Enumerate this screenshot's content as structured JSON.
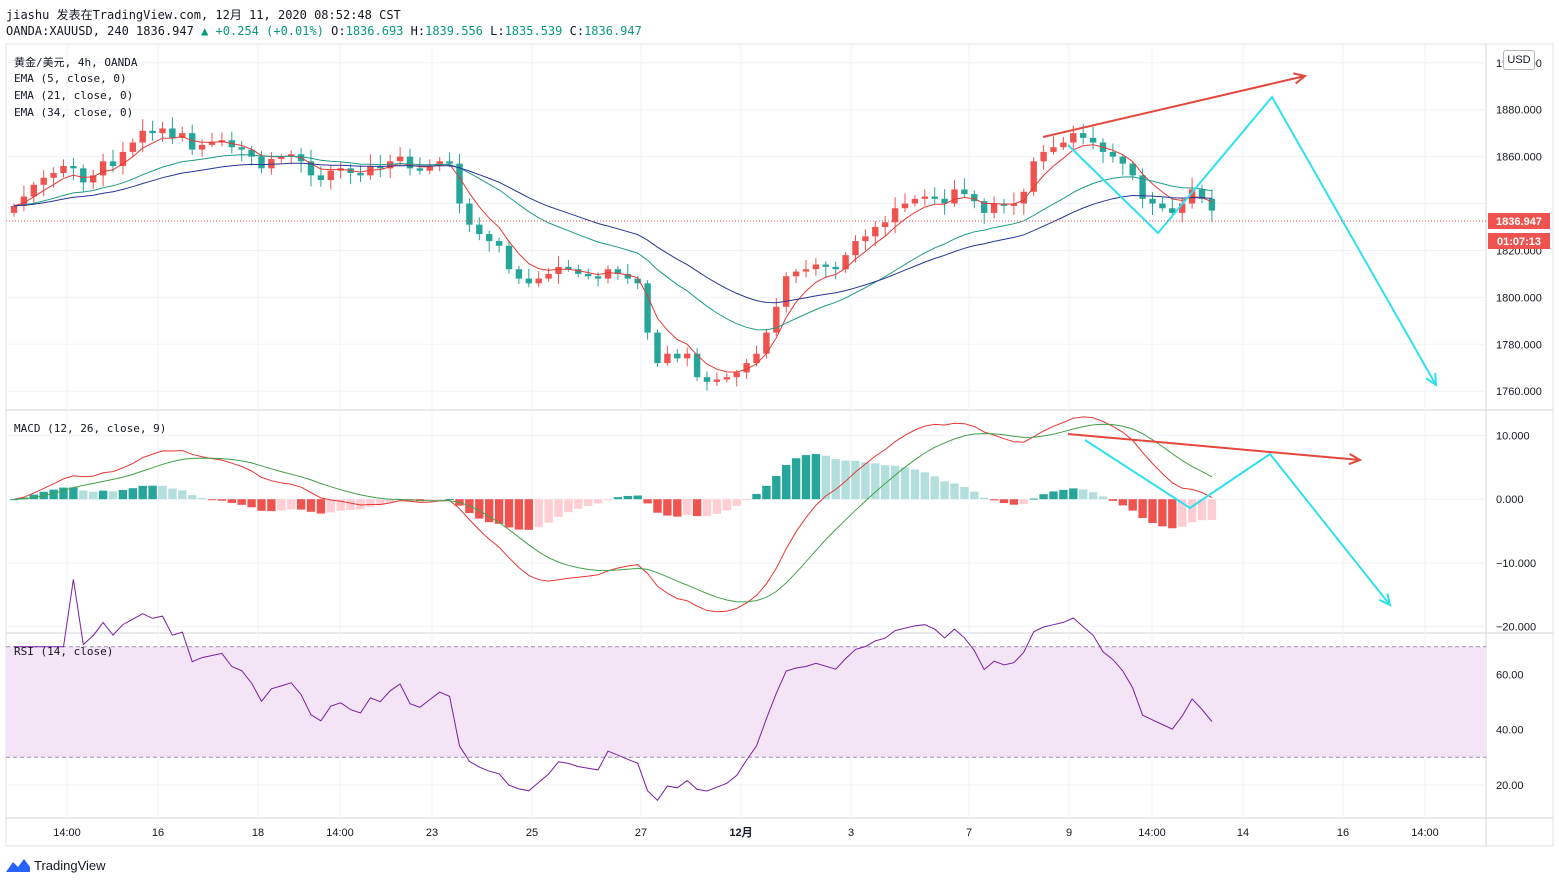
{
  "header": {
    "line1": "jiashu 发表在TradingView.com, 12月 11, 2020 08:52:48 CST",
    "symbol": "OANDA:XAUUSD, 240 1836.947",
    "change": "+0.254 (+0.01%)",
    "ohlc": {
      "o_label": "O:",
      "o": "1836.693",
      "h_label": "H:",
      "h": "1839.556",
      "l_label": "L:",
      "l": "1835.539",
      "c_label": "C:",
      "c": "1836.947"
    }
  },
  "main_pane": {
    "title": "黄金/美元, 4h, OANDA",
    "indicators": [
      "EMA (5, close, 0)",
      "EMA (21, close, 0)",
      "EMA (34, close, 0)"
    ],
    "currency_button": "USD",
    "price_label": "1836.947",
    "countdown_label": "01:07:13"
  },
  "macd_pane": {
    "title": "MACD (12, 26, close, 9)"
  },
  "rsi_pane": {
    "title": "RSI (14, close)"
  },
  "brand": {
    "name": "TradingView"
  },
  "colors": {
    "up": "#26a69a",
    "down": "#ef5350",
    "macd_hist_up_light": "#b2dfdb",
    "macd_hist_down_light": "#ffcdd2",
    "ema5": "#e53935",
    "ema21": "#1e9c8a",
    "ema34": "#283593",
    "arrow_red": "#e5473c",
    "arrow_cyan": "#2fe0f0",
    "rsi": "#7b1fa2",
    "rsi_band": "#f3e5f5"
  },
  "chart_data": [
    {
      "type": "candlestick",
      "title": "黄金/美元, 4h, OANDA",
      "y_ticks": [
        "1900.000",
        "1880.000",
        "1860.000",
        "1840.000",
        "1820.000",
        "1800.000",
        "1780.000",
        "1760.000"
      ],
      "ylim": [
        1752,
        1908
      ],
      "x_ticks": [
        "14:00",
        "16",
        "18",
        "14:00",
        "23",
        "25",
        "27",
        "12月",
        "3",
        "7",
        "9",
        "14:00",
        "14",
        "16",
        "14:00"
      ],
      "close": [
        1839,
        1843,
        1848,
        1851,
        1853,
        1856,
        1855,
        1849,
        1852,
        1858,
        1856,
        1862,
        1866,
        1871,
        1870,
        1872,
        1868,
        1870,
        1863,
        1865,
        1866,
        1867,
        1864,
        1863,
        1860,
        1855,
        1859,
        1860,
        1861,
        1858,
        1852,
        1850,
        1854,
        1855,
        1853,
        1852,
        1856,
        1855,
        1858,
        1860,
        1855,
        1854,
        1856,
        1858,
        1857,
        1840,
        1831,
        1827,
        1824,
        1822,
        1812,
        1808,
        1806,
        1808,
        1810,
        1813,
        1812,
        1810,
        1809,
        1808,
        1812,
        1810,
        1808,
        1806,
        1785,
        1772,
        1776,
        1774,
        1776,
        1766,
        1764,
        1765,
        1766,
        1768,
        1772,
        1776,
        1785,
        1796,
        1809,
        1811,
        1812,
        1814,
        1813,
        1812,
        1818,
        1824,
        1826,
        1830,
        1832,
        1838,
        1840,
        1842,
        1843,
        1842,
        1840,
        1846,
        1844,
        1841,
        1836,
        1840,
        1839,
        1840,
        1845,
        1858,
        1862,
        1864,
        1866,
        1870,
        1868,
        1866,
        1862,
        1860,
        1857,
        1852,
        1842,
        1840,
        1838,
        1836,
        1840,
        1846,
        1842,
        1837
      ],
      "series": [
        {
          "name": "EMA (5, close, 0)",
          "values": []
        },
        {
          "name": "EMA (21, close, 0)",
          "values": []
        },
        {
          "name": "EMA (34, close, 0)",
          "values": []
        }
      ]
    },
    {
      "type": "bar",
      "title": "MACD (12, 26, close, 9)",
      "y_ticks": [
        "10.000",
        "0.000",
        "−10.000",
        "−20.000"
      ],
      "ylim": [
        -21,
        14
      ]
    },
    {
      "type": "line",
      "title": "RSI (14, close)",
      "y_ticks": [
        "60.00",
        "40.00",
        "20.00"
      ],
      "ylim": [
        8,
        75
      ],
      "bands": [
        30,
        70
      ]
    }
  ]
}
